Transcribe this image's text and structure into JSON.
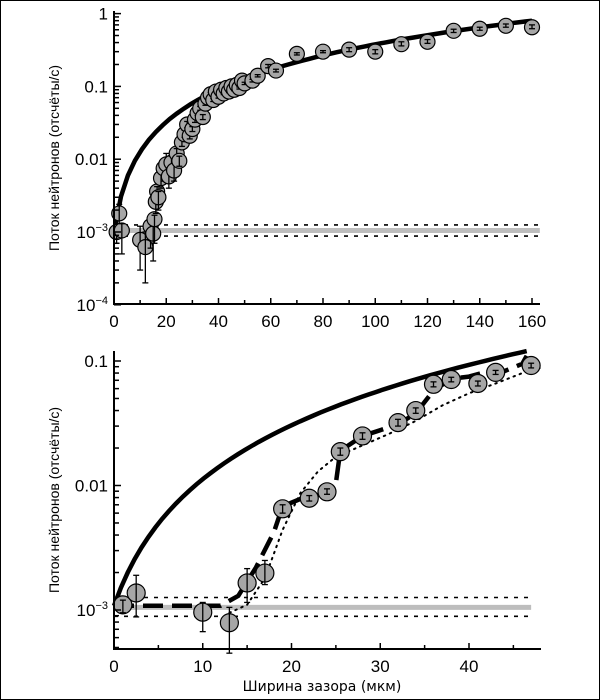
{
  "chart_data": [
    {
      "type": "scatter",
      "panel": "top",
      "title": "",
      "xlabel": "",
      "ylabel": "Поток нейтронов (отсчёты/с)",
      "yscale": "log",
      "xlim": [
        0,
        163
      ],
      "ylim": [
        0.0001,
        1.2
      ],
      "xticks": [
        0,
        20,
        40,
        60,
        80,
        100,
        120,
        140,
        160
      ],
      "xtick_labels": [
        "0",
        "20",
        "40",
        "60",
        "80",
        "100",
        "120",
        "140",
        "160"
      ],
      "yticks": [
        0.0001,
        0.001,
        0.01,
        0.1,
        1
      ],
      "ytick_labels": [
        {
          "base": "10",
          "exp": "−4"
        },
        {
          "base": "10",
          "exp": "−3"
        },
        {
          "base": "0.01",
          "exp": ""
        },
        {
          "base": "0.1",
          "exp": ""
        },
        {
          "base": "1",
          "exp": ""
        }
      ],
      "background": {
        "level": 0.00105,
        "band": [
          0.00088,
          0.00125
        ],
        "xrange": [
          0,
          163
        ]
      },
      "model_curve": {
        "name": "theory",
        "x0": 0,
        "y0": 0.001,
        "x1": 160,
        "y1": 0.8
      },
      "points": [
        {
          "x": 1,
          "y": 0.001,
          "err": [
            0.0007,
            0.0013
          ]
        },
        {
          "x": 2,
          "y": 0.0018,
          "err": [
            0.0013,
            0.0024
          ]
        },
        {
          "x": 3,
          "y": 0.00105,
          "err": [
            0.0005,
            0.0013
          ]
        },
        {
          "x": 10,
          "y": 0.00078,
          "err": [
            0.0003,
            0.0012
          ]
        },
        {
          "x": 12,
          "y": 0.00062,
          "err": [
            0.0002,
            0.001
          ]
        },
        {
          "x": 14,
          "y": 0.0012,
          "err": [
            0.0006,
            0.0016
          ]
        },
        {
          "x": 15,
          "y": 0.00095,
          "err": [
            0.0004,
            0.0013
          ]
        },
        {
          "x": 15.5,
          "y": 0.0015,
          "err": [
            0.0007,
            0.0017
          ]
        },
        {
          "x": 16,
          "y": 0.0026,
          "err": [
            0.0018,
            0.0032
          ]
        },
        {
          "x": 16.5,
          "y": 0.0036,
          "err": [
            0.0025,
            0.0042
          ]
        },
        {
          "x": 17,
          "y": 0.003,
          "err": [
            0.002,
            0.0036
          ]
        },
        {
          "x": 18,
          "y": 0.0055,
          "err": [
            0.004,
            0.0065
          ]
        },
        {
          "x": 19,
          "y": 0.0075,
          "err": [
            0.005,
            0.009
          ]
        },
        {
          "x": 20,
          "y": 0.0085,
          "err": [
            0.006,
            0.012
          ]
        },
        {
          "x": 21,
          "y": 0.0058,
          "err": [
            0.004,
            0.007
          ]
        },
        {
          "x": 22,
          "y": 0.009,
          "err": [
            0.007,
            0.011
          ]
        },
        {
          "x": 23,
          "y": 0.007,
          "err": [
            0.005,
            0.009
          ]
        },
        {
          "x": 24,
          "y": 0.012,
          "err": [
            0.01,
            0.014
          ]
        },
        {
          "x": 25,
          "y": 0.0095,
          "err": [
            0.008,
            0.011
          ]
        },
        {
          "x": 26,
          "y": 0.017,
          "err": [
            0.015,
            0.019
          ]
        },
        {
          "x": 27,
          "y": 0.022,
          "err": [
            0.02,
            0.025
          ]
        },
        {
          "x": 28,
          "y": 0.03,
          "err": [
            0.027,
            0.033
          ]
        },
        {
          "x": 29,
          "y": 0.021,
          "err": [
            0.019,
            0.023
          ]
        },
        {
          "x": 30,
          "y": 0.026,
          "err": [
            0.024,
            0.028
          ]
        },
        {
          "x": 31,
          "y": 0.035,
          "err": [
            0.032,
            0.038
          ]
        },
        {
          "x": 32,
          "y": 0.043,
          "err": [
            0.04,
            0.046
          ]
        },
        {
          "x": 33,
          "y": 0.05,
          "err": [
            0.047,
            0.053
          ]
        },
        {
          "x": 34,
          "y": 0.038,
          "err": [
            0.035,
            0.041
          ]
        },
        {
          "x": 35,
          "y": 0.058,
          "err": [
            0.055,
            0.061
          ]
        },
        {
          "x": 36,
          "y": 0.07,
          "err": [
            0.066,
            0.074
          ]
        },
        {
          "x": 37,
          "y": 0.078,
          "err": [
            0.074,
            0.082
          ]
        },
        {
          "x": 38,
          "y": 0.065,
          "err": [
            0.062,
            0.068
          ]
        },
        {
          "x": 39,
          "y": 0.085,
          "err": [
            0.081,
            0.089
          ]
        },
        {
          "x": 40,
          "y": 0.072,
          "err": [
            0.069,
            0.075
          ]
        },
        {
          "x": 41,
          "y": 0.09,
          "err": [
            0.086,
            0.094
          ]
        },
        {
          "x": 42,
          "y": 0.08,
          "err": [
            0.077,
            0.083
          ]
        },
        {
          "x": 43,
          "y": 0.095,
          "err": [
            0.091,
            0.099
          ]
        },
        {
          "x": 44,
          "y": 0.085,
          "err": [
            0.082,
            0.088
          ]
        },
        {
          "x": 45,
          "y": 0.1,
          "err": [
            0.096,
            0.104
          ]
        },
        {
          "x": 46,
          "y": 0.09,
          "err": [
            0.087,
            0.093
          ]
        },
        {
          "x": 47,
          "y": 0.105,
          "err": [
            0.1,
            0.11
          ]
        },
        {
          "x": 48,
          "y": 0.095,
          "err": [
            0.092,
            0.098
          ]
        },
        {
          "x": 49,
          "y": 0.12,
          "err": [
            0.115,
            0.125
          ]
        },
        {
          "x": 50,
          "y": 0.11,
          "err": [
            0.106,
            0.114
          ]
        },
        {
          "x": 53,
          "y": 0.12,
          "err": [
            0.115,
            0.125
          ]
        },
        {
          "x": 55,
          "y": 0.14,
          "err": [
            0.135,
            0.145
          ]
        },
        {
          "x": 59,
          "y": 0.19,
          "err": [
            0.18,
            0.2
          ]
        },
        {
          "x": 62,
          "y": 0.165,
          "err": [
            0.158,
            0.172
          ]
        },
        {
          "x": 70,
          "y": 0.28,
          "err": [
            0.27,
            0.29
          ]
        },
        {
          "x": 80,
          "y": 0.3,
          "err": [
            0.29,
            0.31
          ]
        },
        {
          "x": 90,
          "y": 0.32,
          "err": [
            0.3,
            0.34
          ]
        },
        {
          "x": 100,
          "y": 0.3,
          "err": [
            0.28,
            0.32
          ]
        },
        {
          "x": 110,
          "y": 0.38,
          "err": [
            0.36,
            0.41
          ]
        },
        {
          "x": 120,
          "y": 0.41,
          "err": [
            0.39,
            0.44
          ]
        },
        {
          "x": 130,
          "y": 0.58,
          "err": [
            0.55,
            0.61
          ]
        },
        {
          "x": 140,
          "y": 0.62,
          "err": [
            0.59,
            0.65
          ]
        },
        {
          "x": 150,
          "y": 0.68,
          "err": [
            0.65,
            0.72
          ]
        },
        {
          "x": 160,
          "y": 0.65,
          "err": [
            0.62,
            0.7
          ]
        }
      ]
    },
    {
      "type": "scatter",
      "panel": "bottom",
      "title": "",
      "xlabel": "Ширина зазора (мкм)",
      "ylabel": "Поток нейтронов (отсчёты/с)",
      "yscale": "log",
      "xlim": [
        0,
        48
      ],
      "ylim": [
        0.00049,
        0.11
      ],
      "xticks": [
        0,
        10,
        20,
        30,
        40
      ],
      "xtick_labels": [
        "0",
        "10",
        "20",
        "30",
        "40"
      ],
      "xminor": [
        5,
        15,
        25,
        35,
        45
      ],
      "yticks": [
        0.001,
        0.01,
        0.1
      ],
      "ytick_labels": [
        {
          "base": "10",
          "exp": "−3"
        },
        {
          "base": "0.01",
          "exp": ""
        },
        {
          "base": "0.1",
          "exp": ""
        }
      ],
      "background": {
        "level": 0.00105,
        "band": [
          0.00089,
          0.00126
        ],
        "xrange": [
          0,
          47
        ]
      },
      "model_curve": {
        "name": "theory",
        "x0": 0,
        "y0": 0.00108,
        "x1": 46.5,
        "y1": 0.12
      },
      "dashed_fit": [
        [
          0,
          0.00108
        ],
        [
          4,
          0.00108
        ],
        [
          10,
          0.00108
        ],
        [
          12,
          0.00108
        ],
        [
          14,
          0.0013
        ],
        [
          16,
          0.0022
        ],
        [
          18,
          0.0042
        ],
        [
          19,
          0.0068
        ],
        [
          21,
          0.0078
        ],
        [
          24,
          0.0087
        ],
        [
          25,
          0.0105
        ],
        [
          25.5,
          0.019
        ],
        [
          28,
          0.025
        ],
        [
          32,
          0.031
        ],
        [
          34,
          0.038
        ],
        [
          36,
          0.058
        ],
        [
          38,
          0.072
        ],
        [
          40,
          0.075
        ],
        [
          42,
          0.082
        ],
        [
          44,
          0.083
        ],
        [
          46,
          0.095
        ],
        [
          46.5,
          0.11
        ]
      ],
      "dotted_fit": [
        [
          13,
          0.00095
        ],
        [
          15,
          0.0011
        ],
        [
          17,
          0.0018
        ],
        [
          19,
          0.0044
        ],
        [
          21,
          0.0087
        ],
        [
          23,
          0.013
        ],
        [
          25,
          0.017
        ],
        [
          28,
          0.021
        ],
        [
          31,
          0.026
        ],
        [
          34,
          0.033
        ],
        [
          37,
          0.044
        ],
        [
          40,
          0.055
        ],
        [
          43,
          0.066
        ],
        [
          46,
          0.08
        ],
        [
          48,
          0.088
        ]
      ],
      "points": [
        {
          "x": 1,
          "y": 0.0011,
          "err": [
            0.00095,
            0.0012
          ]
        },
        {
          "x": 2.5,
          "y": 0.00137,
          "err": [
            0.00088,
            0.0019
          ]
        },
        {
          "x": 10,
          "y": 0.00096,
          "err": [
            0.00067,
            0.00115
          ]
        },
        {
          "x": 13,
          "y": 0.00079,
          "err": [
            0.00045,
            0.00105
          ]
        },
        {
          "x": 15,
          "y": 0.00165,
          "err": [
            0.00115,
            0.00215
          ]
        },
        {
          "x": 17,
          "y": 0.00198,
          "err": [
            0.0016,
            0.0025
          ]
        },
        {
          "x": 19,
          "y": 0.0065,
          "err": [
            0.006,
            0.007
          ]
        },
        {
          "x": 22,
          "y": 0.0079,
          "err": [
            0.0075,
            0.0083
          ]
        },
        {
          "x": 24,
          "y": 0.0089,
          "err": [
            0.0085,
            0.0094
          ]
        },
        {
          "x": 25.5,
          "y": 0.0187,
          "err": [
            0.0175,
            0.02
          ]
        },
        {
          "x": 28,
          "y": 0.025,
          "err": [
            0.0235,
            0.0265
          ]
        },
        {
          "x": 32,
          "y": 0.032,
          "err": [
            0.03,
            0.034
          ]
        },
        {
          "x": 34,
          "y": 0.04,
          "err": [
            0.038,
            0.042
          ]
        },
        {
          "x": 36,
          "y": 0.065,
          "err": [
            0.062,
            0.068
          ]
        },
        {
          "x": 38,
          "y": 0.071,
          "err": [
            0.068,
            0.074
          ]
        },
        {
          "x": 41,
          "y": 0.066,
          "err": [
            0.063,
            0.069
          ]
        },
        {
          "x": 43,
          "y": 0.081,
          "err": [
            0.078,
            0.084
          ]
        },
        {
          "x": 47,
          "y": 0.092,
          "err": [
            0.088,
            0.096
          ]
        }
      ]
    }
  ],
  "colors": {
    "marker_fill": "#a6a6a6",
    "background_band": "#bdbdbd",
    "ink": "#000000"
  }
}
